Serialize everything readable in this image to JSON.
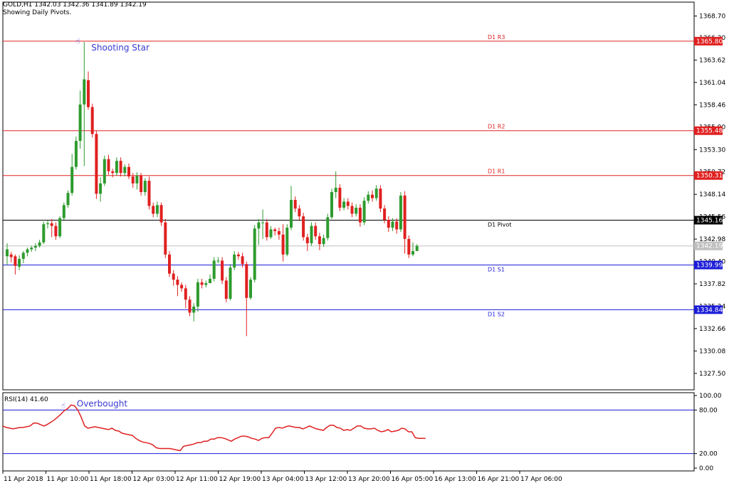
{
  "header": {
    "symbol_line": "GOLD,H1  1342.03 1342.36 1341.89 1342.19",
    "subtitle": "Showing Daily Pivots."
  },
  "colors": {
    "bull": "#2e9b2e",
    "bear": "#e02020",
    "resistance": "#e02020",
    "support": "#1c1cd8",
    "pivot": "#000000",
    "rsi": "#e02020",
    "annotation": "#3a3ad0",
    "fractal": "#33bb88"
  },
  "chart_data": [
    {
      "type": "candlestick",
      "title": "GOLD,H1",
      "ylim": [
        1325.6,
        1370.3
      ],
      "y_ticks": [
        "1368.70",
        "1366.20",
        "1363.62",
        "1361.04",
        "1358.46",
        "1355.90",
        "1353.30",
        "1350.72",
        "1348.14",
        "1345.56",
        "1342.98",
        "1340.40",
        "1337.82",
        "1335.24",
        "1332.66",
        "1330.08",
        "1327.50"
      ],
      "x_labels": [
        "11 Apr 2018",
        "11 Apr 10:00",
        "11 Apr 18:00",
        "12 Apr 03:00",
        "12 Apr 11:00",
        "12 Apr 19:00",
        "13 Apr 04:00",
        "13 Apr 12:00",
        "13 Apr 20:00",
        "16 Apr 05:00",
        "16 Apr 13:00",
        "16 Apr 21:00",
        "17 Apr 06:00"
      ],
      "pivot_levels": [
        {
          "name": "D1 R3",
          "value": 1365.8,
          "label": "1365.80",
          "kind": "resistance"
        },
        {
          "name": "D1 R2",
          "value": 1355.48,
          "label": "1355.48",
          "kind": "resistance"
        },
        {
          "name": "D1 R1",
          "value": 1350.31,
          "label": "1350.31",
          "kind": "resistance"
        },
        {
          "name": "D1 Pivot",
          "value": 1345.16,
          "label": "1345.16",
          "kind": "pivot"
        },
        {
          "name": "D1 S1",
          "value": 1339.99,
          "label": "1339.99",
          "kind": "support"
        },
        {
          "name": "D1 S2",
          "value": 1334.84,
          "label": "1334.84",
          "kind": "support"
        }
      ],
      "current_price": {
        "value": 1342.19,
        "label": "1342.19"
      },
      "annotation": {
        "text": "Shooting Star"
      },
      "candles": [
        [
          1341.0,
          1341.8,
          1340.0,
          1342.5
        ],
        [
          1341.2,
          1340.9,
          1340.3,
          1341.5
        ],
        [
          1341.0,
          1339.9,
          1338.9,
          1341.2
        ],
        [
          1339.8,
          1340.7,
          1339.4,
          1341.1
        ],
        [
          1340.7,
          1341.4,
          1340.2,
          1341.6
        ],
        [
          1341.4,
          1341.8,
          1341.0,
          1342.0
        ],
        [
          1341.8,
          1342.0,
          1341.5,
          1342.2
        ],
        [
          1342.0,
          1342.2,
          1341.6,
          1342.5
        ],
        [
          1342.2,
          1342.6,
          1342.0,
          1342.9
        ],
        [
          1342.6,
          1344.7,
          1342.4,
          1345.0
        ],
        [
          1344.7,
          1344.8,
          1344.2,
          1345.1
        ],
        [
          1344.8,
          1344.5,
          1343.2,
          1345.3
        ],
        [
          1344.5,
          1343.3,
          1342.9,
          1344.9
        ],
        [
          1343.3,
          1345.4,
          1343.1,
          1345.6
        ],
        [
          1345.4,
          1346.9,
          1345.2,
          1347.2
        ],
        [
          1346.9,
          1348.3,
          1346.6,
          1348.6
        ],
        [
          1348.3,
          1351.3,
          1348.0,
          1352.8
        ],
        [
          1351.3,
          1354.3,
          1351.0,
          1354.8
        ],
        [
          1354.3,
          1358.5,
          1353.4,
          1360.1
        ],
        [
          1358.5,
          1361.4,
          1351.4,
          1365.7
        ],
        [
          1361.3,
          1358.2,
          1357.9,
          1362.3
        ],
        [
          1358.2,
          1355.1,
          1354.7,
          1358.6
        ],
        [
          1355.1,
          1348.2,
          1347.6,
          1355.5
        ],
        [
          1348.2,
          1349.4,
          1347.3,
          1350.1
        ],
        [
          1349.4,
          1352.2,
          1349.1,
          1352.6
        ],
        [
          1352.2,
          1350.8,
          1350.4,
          1352.7
        ],
        [
          1350.8,
          1350.6,
          1350.1,
          1351.1
        ],
        [
          1350.6,
          1352.0,
          1350.3,
          1352.4
        ],
        [
          1352.0,
          1350.6,
          1350.2,
          1352.4
        ],
        [
          1350.6,
          1351.3,
          1350.2,
          1351.6
        ],
        [
          1351.3,
          1350.2,
          1349.9,
          1351.7
        ],
        [
          1350.2,
          1349.4,
          1348.9,
          1350.6
        ],
        [
          1349.4,
          1350.3,
          1348.7,
          1350.7
        ],
        [
          1350.3,
          1348.4,
          1348.0,
          1350.6
        ],
        [
          1348.4,
          1349.7,
          1348.0,
          1350.0
        ],
        [
          1349.7,
          1346.8,
          1346.4,
          1350.2
        ],
        [
          1346.8,
          1345.9,
          1345.5,
          1347.2
        ],
        [
          1345.9,
          1346.9,
          1345.5,
          1347.3
        ],
        [
          1346.9,
          1344.9,
          1344.5,
          1347.2
        ],
        [
          1344.9,
          1341.2,
          1340.8,
          1345.3
        ],
        [
          1341.2,
          1339.0,
          1338.6,
          1341.6
        ],
        [
          1339.0,
          1338.3,
          1337.6,
          1339.4
        ],
        [
          1338.3,
          1337.7,
          1336.4,
          1338.7
        ],
        [
          1337.7,
          1337.3,
          1336.9,
          1338.0
        ],
        [
          1337.3,
          1336.0,
          1335.0,
          1337.7
        ],
        [
          1336.0,
          1334.5,
          1334.1,
          1336.4
        ],
        [
          1334.5,
          1335.2,
          1333.5,
          1335.6
        ],
        [
          1335.2,
          1338.0,
          1334.6,
          1338.4
        ],
        [
          1338.0,
          1337.7,
          1337.3,
          1338.4
        ],
        [
          1337.7,
          1337.9,
          1337.4,
          1338.2
        ],
        [
          1337.9,
          1338.4,
          1338.0,
          1338.9
        ],
        [
          1338.4,
          1340.5,
          1338.1,
          1340.9
        ],
        [
          1340.5,
          1340.5,
          1340.2,
          1340.9
        ],
        [
          1340.5,
          1338.2,
          1337.8,
          1340.9
        ],
        [
          1338.2,
          1336.1,
          1335.7,
          1338.6
        ],
        [
          1336.1,
          1339.7,
          1335.9,
          1340.1
        ],
        [
          1339.7,
          1341.2,
          1339.4,
          1341.6
        ],
        [
          1341.2,
          1341.0,
          1340.6,
          1341.5
        ],
        [
          1341.0,
          1340.1,
          1339.7,
          1341.4
        ],
        [
          1340.1,
          1336.2,
          1331.8,
          1340.4
        ],
        [
          1336.2,
          1338.3,
          1336.0,
          1338.6
        ],
        [
          1338.3,
          1344.2,
          1338.0,
          1344.6
        ],
        [
          1344.2,
          1344.9,
          1342.3,
          1345.3
        ],
        [
          1344.9,
          1344.9,
          1343.0,
          1346.4
        ],
        [
          1344.9,
          1343.2,
          1342.8,
          1345.3
        ],
        [
          1343.2,
          1344.1,
          1343.0,
          1344.5
        ],
        [
          1344.1,
          1343.9,
          1343.4,
          1344.3
        ],
        [
          1343.9,
          1343.5,
          1342.9,
          1344.3
        ],
        [
          1343.5,
          1341.2,
          1340.4,
          1344.7
        ],
        [
          1341.2,
          1344.3,
          1341.0,
          1344.7
        ],
        [
          1344.3,
          1347.5,
          1344.0,
          1349.1
        ],
        [
          1347.5,
          1346.5,
          1346.1,
          1347.9
        ],
        [
          1346.5,
          1345.6,
          1345.2,
          1346.9
        ],
        [
          1345.6,
          1343.2,
          1342.8,
          1346.0
        ],
        [
          1343.2,
          1342.5,
          1341.6,
          1343.6
        ],
        [
          1342.5,
          1344.5,
          1342.2,
          1344.9
        ],
        [
          1344.5,
          1343.3,
          1342.9,
          1344.9
        ],
        [
          1343.3,
          1342.4,
          1341.7,
          1343.7
        ],
        [
          1342.4,
          1343.1,
          1342.1,
          1343.5
        ],
        [
          1343.1,
          1345.5,
          1342.8,
          1345.9
        ],
        [
          1345.5,
          1348.4,
          1345.3,
          1348.8
        ],
        [
          1348.4,
          1348.9,
          1347.7,
          1350.8
        ],
        [
          1348.9,
          1346.6,
          1346.2,
          1349.3
        ],
        [
          1346.6,
          1347.3,
          1346.3,
          1347.7
        ],
        [
          1347.3,
          1346.8,
          1346.4,
          1347.7
        ],
        [
          1346.8,
          1345.9,
          1345.5,
          1347.2
        ],
        [
          1345.9,
          1346.6,
          1345.6,
          1347.0
        ],
        [
          1346.6,
          1344.9,
          1344.4,
          1347.0
        ],
        [
          1344.9,
          1347.4,
          1344.6,
          1347.8
        ],
        [
          1347.4,
          1348.1,
          1347.1,
          1348.5
        ],
        [
          1348.1,
          1347.7,
          1347.3,
          1348.6
        ],
        [
          1347.7,
          1348.8,
          1347.4,
          1349.2
        ],
        [
          1348.8,
          1346.5,
          1346.1,
          1349.2
        ],
        [
          1346.5,
          1345.2,
          1344.8,
          1346.9
        ],
        [
          1345.2,
          1344.3,
          1343.8,
          1345.6
        ],
        [
          1344.3,
          1345.0,
          1343.9,
          1345.4
        ],
        [
          1345.0,
          1344.1,
          1343.6,
          1345.4
        ],
        [
          1344.1,
          1348.0,
          1343.8,
          1348.4
        ],
        [
          1348.0,
          1343.0,
          1341.3,
          1348.5
        ],
        [
          1343.0,
          1341.2,
          1340.8,
          1343.4
        ],
        [
          1341.2,
          1341.6,
          1341.0,
          1342.6
        ],
        [
          1341.6,
          1342.2,
          1341.6,
          1342.4
        ]
      ]
    },
    {
      "type": "line",
      "title": "RSI(14) 41.60",
      "ylim": [
        0,
        100
      ],
      "y_ticks": [
        "100.00",
        "80.00",
        "20.00",
        "0.00"
      ],
      "levels": [
        80,
        20
      ],
      "annotation": {
        "text": "Overbought"
      },
      "values": [
        58,
        56,
        55,
        54,
        55,
        56,
        56,
        57,
        58,
        62,
        62,
        60,
        58,
        60,
        63,
        66,
        70,
        74,
        79,
        82,
        87,
        86,
        80,
        70,
        58,
        55,
        56,
        57,
        56,
        55,
        54,
        53,
        55,
        52,
        51,
        48,
        47,
        46,
        45,
        41,
        38,
        36,
        35,
        34,
        32,
        28,
        27,
        27,
        27,
        27,
        26,
        25,
        24,
        30,
        31,
        32,
        33,
        35,
        35,
        37,
        37,
        40,
        40,
        42,
        42,
        41,
        39,
        37,
        40,
        42,
        44,
        44,
        43,
        41,
        40,
        38,
        41,
        42,
        42,
        48,
        55,
        56,
        55,
        57,
        58,
        57,
        56,
        56,
        54,
        56,
        58,
        56,
        54,
        53,
        52,
        56,
        59,
        59,
        56,
        55,
        52,
        53,
        52,
        55,
        58,
        58,
        55,
        54,
        54,
        55,
        52,
        50,
        51,
        53,
        50,
        51,
        52,
        55,
        54,
        50,
        50,
        42,
        41,
        41,
        41
      ]
    }
  ]
}
